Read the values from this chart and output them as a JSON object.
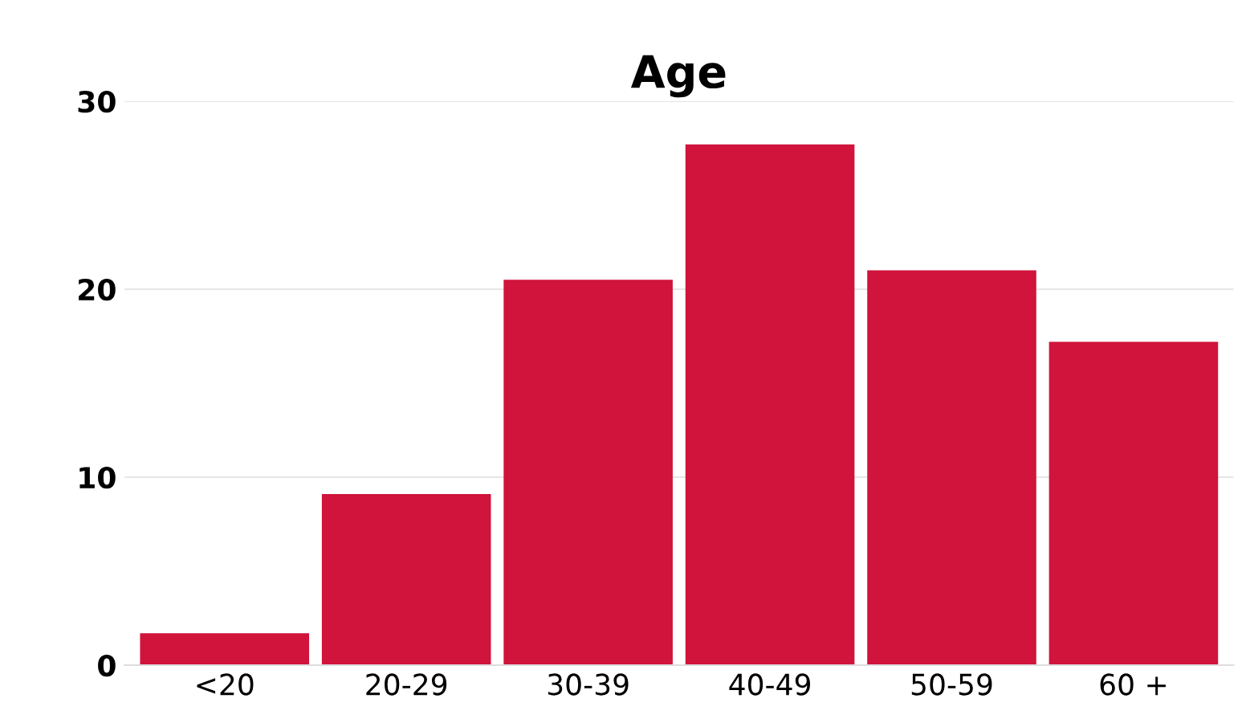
{
  "chart_data": {
    "type": "bar",
    "title": "Age",
    "categories": [
      "<20",
      "20-29",
      "30-39",
      "40-49",
      "50-59",
      "60 +"
    ],
    "values": [
      1.7,
      9.1,
      20.5,
      27.7,
      21,
      17.2
    ],
    "color": "#d0143c",
    "ylim": [
      0,
      30
    ],
    "yticks": [
      0,
      10,
      20,
      30
    ],
    "grid": "y"
  }
}
